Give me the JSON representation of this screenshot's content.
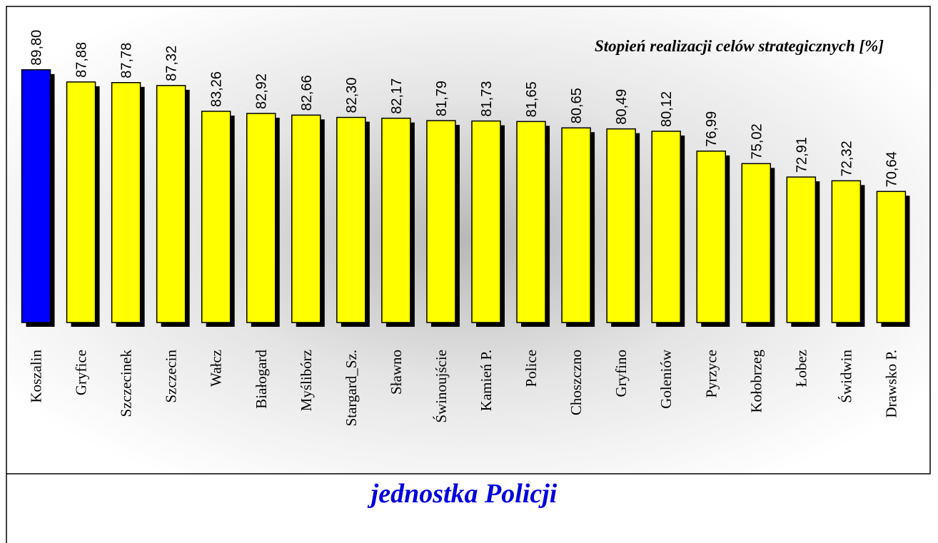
{
  "chart_data": {
    "type": "bar",
    "title": "Stopień realizacji celów strategicznych [%]",
    "x_label": "jednostka Policji",
    "categories": [
      "Koszalin",
      "Gryfice",
      "Szczecinek",
      "Szczecin",
      "Wałcz",
      "Białogard",
      "Myślibórz",
      "Stargard_Sz.",
      "Sławno",
      "Świnoujście",
      "Kamień P.",
      "Police",
      "Choszczno",
      "Gryfino",
      "Goleniów",
      "Pyrzyce",
      "Kołobrzeg",
      "Łobez",
      "Świdwin",
      "Drawsko P."
    ],
    "values": [
      89.8,
      87.88,
      87.78,
      87.32,
      83.26,
      82.92,
      82.66,
      82.3,
      82.17,
      81.79,
      81.73,
      81.65,
      80.65,
      80.49,
      80.12,
      76.99,
      75.02,
      72.91,
      72.32,
      70.64
    ],
    "value_labels": [
      "89,80",
      "87,88",
      "87,78",
      "87,32",
      "83,26",
      "82,92",
      "82,66",
      "82,30",
      "82,17",
      "81,79",
      "81,73",
      "81,65",
      "80,65",
      "80,49",
      "80,12",
      "76,99",
      "75,02",
      "72,91",
      "72,32",
      "70,64"
    ],
    "colors": [
      "#0000ff",
      "#ffff00",
      "#ffff00",
      "#ffff00",
      "#ffff00",
      "#ffff00",
      "#ffff00",
      "#ffff00",
      "#ffff00",
      "#ffff00",
      "#ffff00",
      "#ffff00",
      "#ffff00",
      "#ffff00",
      "#ffff00",
      "#ffff00",
      "#ffff00",
      "#ffff00",
      "#ffff00",
      "#ffff00"
    ],
    "ylim": [
      50,
      90
    ]
  }
}
